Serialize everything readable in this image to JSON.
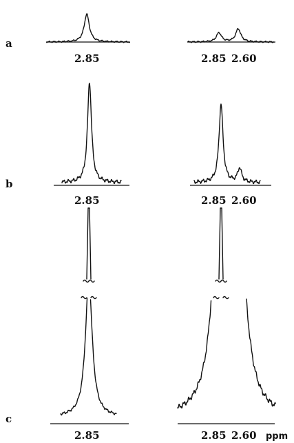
{
  "chart_data": {
    "type": "line",
    "x_unit": "ppm",
    "panels": [
      {
        "label": "a",
        "spectra": [
          {
            "ticks": [
              "2.85"
            ],
            "peaks": [
              {
                "ppm": 2.85,
                "height": 0.7
              }
            ]
          },
          {
            "ticks": [
              "2.85",
              "2.60"
            ],
            "peaks": [
              {
                "ppm": 2.85,
                "height": 0.23
              },
              {
                "ppm": 2.6,
                "height": 0.33
              }
            ]
          }
        ]
      },
      {
        "label": "b",
        "spectra": [
          {
            "ticks": [
              "2.85"
            ],
            "peaks": [
              {
                "ppm": 2.85,
                "height": 1.0
              }
            ]
          },
          {
            "ticks": [
              "2.85",
              "2.60"
            ],
            "peaks": [
              {
                "ppm": 2.85,
                "height": 0.78
              },
              {
                "ppm": 2.6,
                "height": 0.14
              }
            ]
          }
        ]
      },
      {
        "label": "c",
        "spectra": [
          {
            "ticks": [
              "2.85"
            ],
            "peaks": [
              {
                "ppm": 2.85,
                "height": 2.0,
                "off_scale": true
              }
            ]
          },
          {
            "ticks": [
              "2.85",
              "2.60"
            ],
            "peaks": [
              {
                "ppm": 2.85,
                "height": 2.0,
                "off_scale": true
              },
              {
                "ppm": 2.6,
                "height": 1.0
              }
            ]
          }
        ]
      }
    ]
  }
}
